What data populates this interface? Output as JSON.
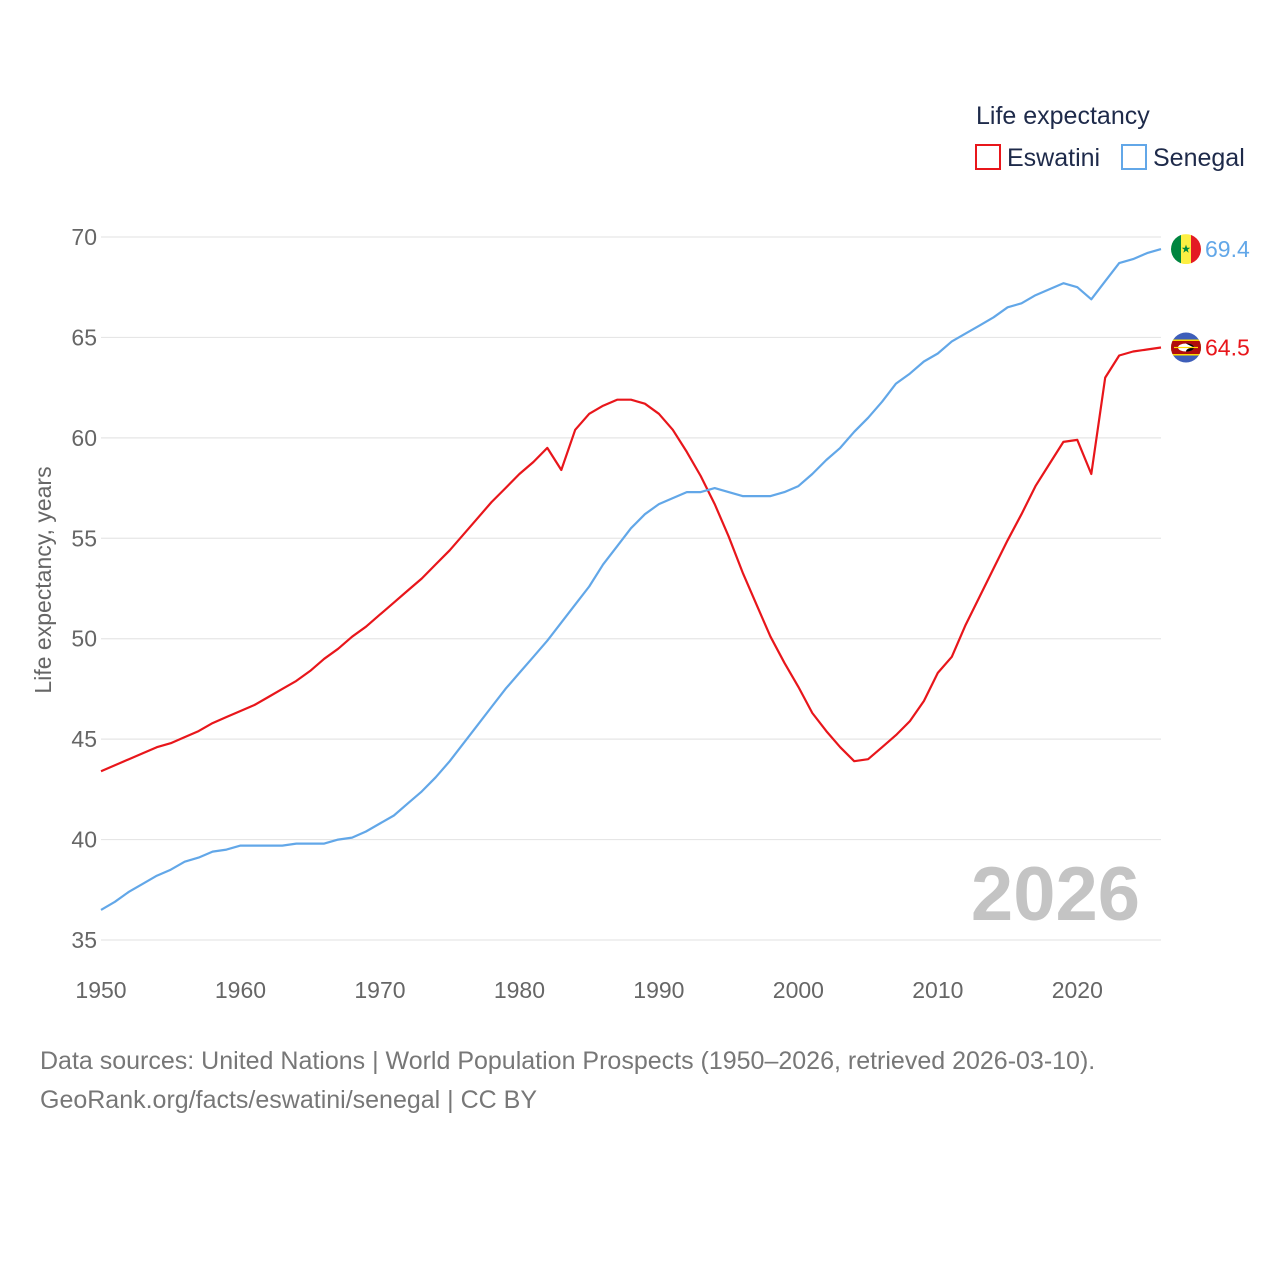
{
  "legend": {
    "title": "Life expectancy",
    "items": [
      {
        "label": "Eswatini",
        "color": "#e8161b"
      },
      {
        "label": "Senegal",
        "color": "#62a7e8"
      }
    ]
  },
  "year_watermark": "2026",
  "footer": {
    "line1": "Data sources: United Nations | World Population Prospects (1950–2026, retrieved 2026-03-10).",
    "line2": "GeoRank.org/facts/eswatini/senegal | CC BY"
  },
  "chart_data": {
    "type": "line",
    "title": "Life expectancy",
    "xlabel": "",
    "ylabel": "Life expectancy, years",
    "xlim": [
      1950,
      2026
    ],
    "ylim": [
      35,
      70
    ],
    "xticks": [
      1950,
      1960,
      1970,
      1980,
      1990,
      2000,
      2010,
      2020
    ],
    "yticks": [
      35,
      40,
      45,
      50,
      55,
      60,
      65,
      70
    ],
    "grid": true,
    "legend_position": "top-right",
    "x": [
      1950,
      1951,
      1952,
      1953,
      1954,
      1955,
      1956,
      1957,
      1958,
      1959,
      1960,
      1961,
      1962,
      1963,
      1964,
      1965,
      1966,
      1967,
      1968,
      1969,
      1970,
      1971,
      1972,
      1973,
      1974,
      1975,
      1976,
      1977,
      1978,
      1979,
      1980,
      1981,
      1982,
      1983,
      1984,
      1985,
      1986,
      1987,
      1988,
      1989,
      1990,
      1991,
      1992,
      1993,
      1994,
      1995,
      1996,
      1997,
      1998,
      1999,
      2000,
      2001,
      2002,
      2003,
      2004,
      2005,
      2006,
      2007,
      2008,
      2009,
      2010,
      2011,
      2012,
      2013,
      2014,
      2015,
      2016,
      2017,
      2018,
      2019,
      2020,
      2021,
      2022,
      2023,
      2024,
      2025,
      2026
    ],
    "series": [
      {
        "name": "Eswatini",
        "color": "#e8161b",
        "end_label": "64.5",
        "values": [
          43.4,
          43.7,
          44.0,
          44.3,
          44.6,
          44.8,
          45.1,
          45.4,
          45.8,
          46.1,
          46.4,
          46.7,
          47.1,
          47.5,
          47.9,
          48.4,
          49.0,
          49.5,
          50.1,
          50.6,
          51.2,
          51.8,
          52.4,
          53.0,
          53.7,
          54.4,
          55.2,
          56.0,
          56.8,
          57.5,
          58.2,
          58.8,
          59.5,
          58.4,
          60.4,
          61.2,
          61.6,
          61.9,
          61.9,
          61.7,
          61.2,
          60.4,
          59.3,
          58.1,
          56.7,
          55.1,
          53.3,
          51.7,
          50.1,
          48.8,
          47.6,
          46.3,
          45.4,
          44.6,
          43.9,
          44.0,
          44.6,
          45.2,
          45.9,
          46.9,
          48.3,
          49.1,
          50.7,
          52.1,
          53.5,
          54.9,
          56.2,
          57.6,
          58.7,
          59.8,
          59.9,
          58.2,
          63.0,
          64.1,
          64.3,
          64.4,
          64.5
        ]
      },
      {
        "name": "Senegal",
        "color": "#62a7e8",
        "end_label": "69.4",
        "values": [
          36.5,
          36.9,
          37.4,
          37.8,
          38.2,
          38.5,
          38.9,
          39.1,
          39.4,
          39.5,
          39.7,
          39.7,
          39.7,
          39.7,
          39.8,
          39.8,
          39.8,
          40.0,
          40.1,
          40.4,
          40.8,
          41.2,
          41.8,
          42.4,
          43.1,
          43.9,
          44.8,
          45.7,
          46.6,
          47.5,
          48.3,
          49.1,
          49.9,
          50.8,
          51.7,
          52.6,
          53.7,
          54.6,
          55.5,
          56.2,
          56.7,
          57.0,
          57.3,
          57.3,
          57.5,
          57.3,
          57.1,
          57.1,
          57.1,
          57.3,
          57.6,
          58.2,
          58.9,
          59.5,
          60.3,
          61.0,
          61.8,
          62.7,
          63.2,
          63.8,
          64.2,
          64.8,
          65.2,
          65.6,
          66.0,
          66.5,
          66.7,
          67.1,
          67.4,
          67.7,
          67.5,
          66.9,
          67.8,
          68.7,
          68.9,
          69.2,
          69.4
        ]
      }
    ]
  }
}
